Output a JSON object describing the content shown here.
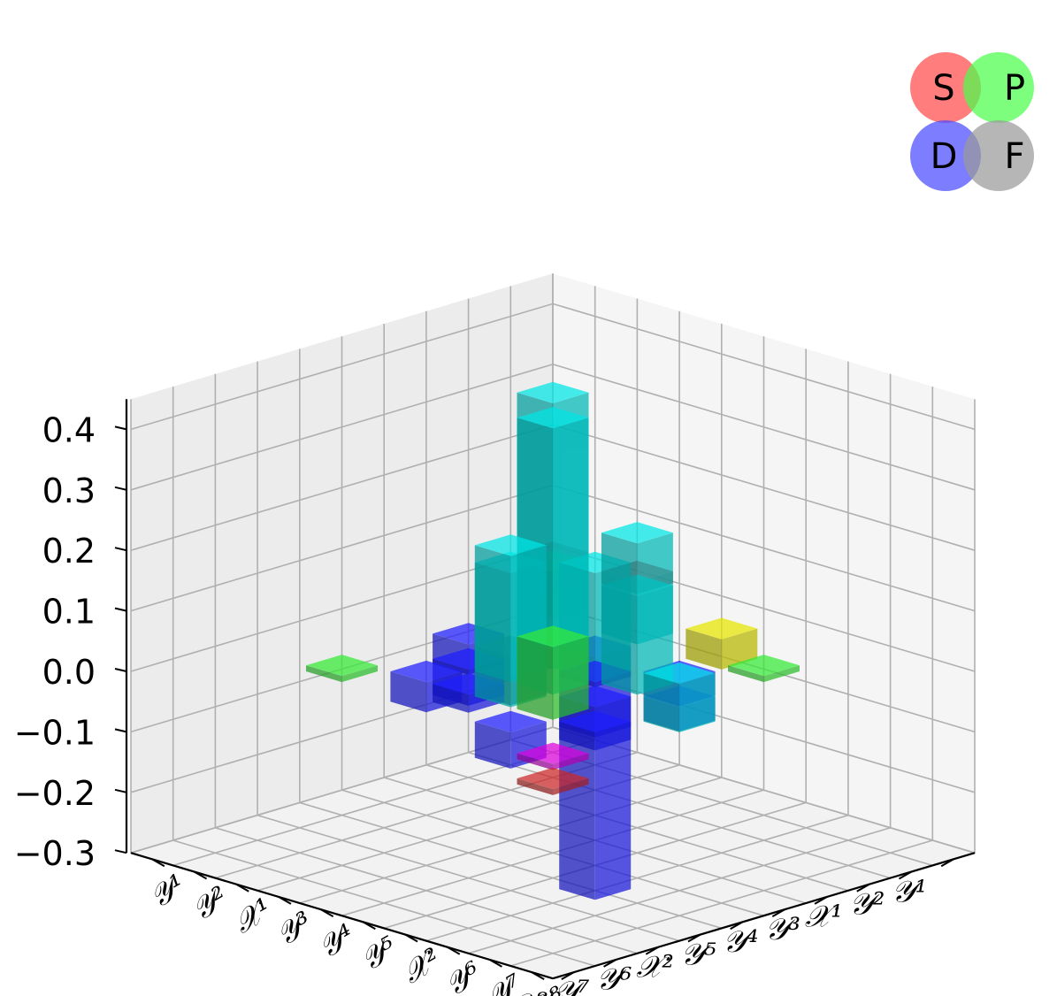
{
  "chart_data": {
    "type": "bar3d",
    "title": "",
    "categories": [
      "𝒴¹",
      "𝒴²",
      "𝒳¹",
      "𝒴³",
      "𝒴⁴",
      "𝒴⁵",
      "𝒳²",
      "𝒴⁶",
      "𝒴⁷",
      "𝒴⁸"
    ],
    "zlim": [
      -0.3,
      0.45
    ],
    "zticks": [
      "0.4",
      "0.3",
      "0.2",
      "0.1",
      "0.0",
      "−0.1",
      "−0.2",
      "−0.3"
    ],
    "grid": true,
    "legend": {
      "placement": "top-right",
      "entries": [
        {
          "name": "S",
          "color": "#ff4b4b"
        },
        {
          "name": "P",
          "color": "#4bff4b"
        },
        {
          "name": "D",
          "color": "#4b4bff"
        },
        {
          "name": "F",
          "color": "#9a9a9a"
        }
      ]
    },
    "colors": {
      "S": "#b22222",
      "P": "#2ecc2e",
      "D": "#1a1aee",
      "F": "#555555",
      "SP": "#c8c800",
      "SD": "#c000c0",
      "PD": "#00c8c8"
    },
    "bars": [
      {
        "i": 4,
        "j": 5,
        "value": -0.36,
        "type": "D"
      },
      {
        "i": 4,
        "j": 4,
        "value": 0.44,
        "type": "PD"
      },
      {
        "i": 5,
        "j": 5,
        "value": 0.44,
        "type": "PD"
      },
      {
        "i": 4,
        "j": 6,
        "value": 0.25,
        "type": "PD"
      },
      {
        "i": 6,
        "j": 5,
        "value": 0.25,
        "type": "PD"
      },
      {
        "i": 4,
        "j": 5,
        "value": 0.18,
        "type": "PD"
      },
      {
        "i": 5,
        "j": 4,
        "value": 0.18,
        "type": "PD"
      },
      {
        "i": 2,
        "j": 4,
        "value": 0.08,
        "type": "PD"
      },
      {
        "i": 5,
        "j": 8,
        "value": 0.08,
        "type": "PD"
      },
      {
        "i": 3,
        "j": 3,
        "value": 0.12,
        "type": "P"
      },
      {
        "i": 6,
        "j": 6,
        "value": 0.12,
        "type": "P"
      },
      {
        "i": 2,
        "j": 2,
        "value": 0.06,
        "type": "P"
      },
      {
        "i": 2,
        "j": 6,
        "value": 0.05,
        "type": "SP"
      },
      {
        "i": 0,
        "j": 2,
        "value": 0.02,
        "type": "S"
      },
      {
        "i": 3,
        "j": 4,
        "value": -0.05,
        "type": "D"
      },
      {
        "i": 4,
        "j": 2,
        "value": -0.05,
        "type": "D"
      },
      {
        "i": 5,
        "j": 6,
        "value": -0.05,
        "type": "D"
      },
      {
        "i": 6,
        "j": 3,
        "value": -0.05,
        "type": "D"
      },
      {
        "i": 5,
        "j": 3,
        "value": -0.06,
        "type": "D"
      },
      {
        "i": 7,
        "j": 6,
        "value": -0.06,
        "type": "D"
      },
      {
        "i": 3,
        "j": 6,
        "value": -0.04,
        "type": "D"
      },
      {
        "i": 6,
        "j": 4,
        "value": -0.03,
        "type": "D"
      },
      {
        "i": 4,
        "j": 7,
        "value": -0.04,
        "type": "D"
      },
      {
        "i": 6,
        "j": 7,
        "value": -0.03,
        "type": "D"
      },
      {
        "i": 4,
        "j": 3,
        "value": -0.08,
        "type": "F"
      },
      {
        "i": 1,
        "j": 1,
        "value": 0.01,
        "type": "SD"
      },
      {
        "i": 8,
        "j": 8,
        "value": 0.01,
        "type": "SD"
      },
      {
        "i": 0,
        "j": 0,
        "value": 0.01,
        "type": "S"
      },
      {
        "i": 9,
        "j": 9,
        "value": 0.01,
        "type": "S"
      },
      {
        "i": 2,
        "j": 7,
        "value": 0.01,
        "type": "P"
      },
      {
        "i": 7,
        "j": 2,
        "value": 0.01,
        "type": "P"
      }
    ]
  }
}
